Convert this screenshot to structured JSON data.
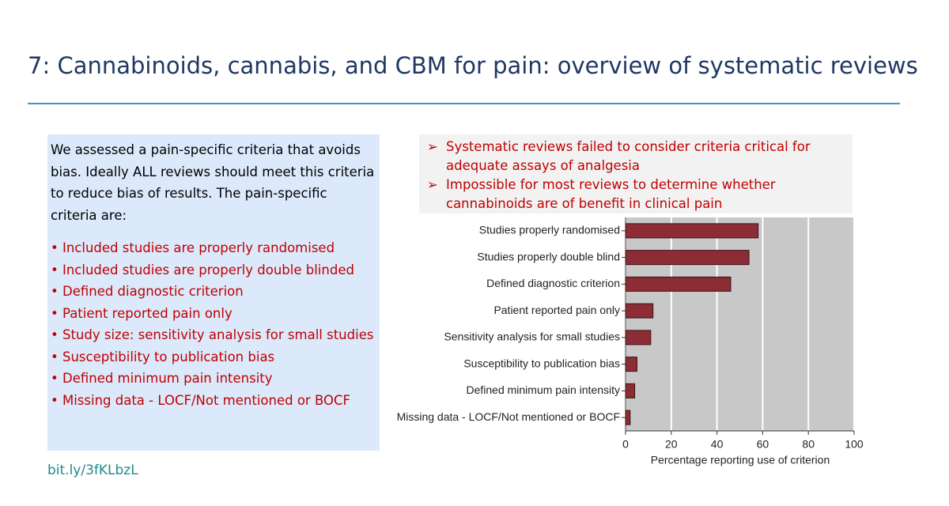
{
  "title": "7: Cannabinoids, cannabis, and CBM for pain: overview of systematic reviews",
  "intro": "We assessed a pain-specific criteria that avoids bias. Ideally ALL reviews should meet this criteria to reduce bias of results. The pain-specific criteria are:",
  "criteria": [
    "Included studies are properly randomised",
    "Included studies are properly double blinded",
    "Defined diagnostic criterion",
    "Patient reported pain only",
    "Study size:  sensitivity analysis for small studies",
    "Susceptibility to publication bias",
    "Defined minimum pain intensity",
    "Missing data - LOCF/Not mentioned or BOCF"
  ],
  "callouts": [
    "Systematic reviews failed to consider criteria critical for adequate assays of analgesia",
    "Impossible for most reviews to determine whether cannabinoids are of benefit in clinical pain"
  ],
  "link": "bit.ly/3fKLbzL",
  "chart_data": {
    "type": "hbar",
    "x_label": "Percentage reporting use of criterion",
    "categories": [
      "Studies properly randomised",
      "Studies properly double blind",
      "Defined diagnostic criterion",
      "Patient reported pain only",
      "Sensitivity analysis for small studies",
      "Susceptibility to publication bias",
      "Defined minimum pain intensity",
      "Missing data - LOCF/Not mentioned or BOCF"
    ],
    "values": [
      58,
      54,
      46,
      12,
      11,
      5,
      4,
      2
    ],
    "color": "#8c2d35",
    "xlim": [
      0,
      100
    ],
    "xticks": [
      0,
      20,
      40,
      60,
      80,
      100
    ],
    "grid": true
  }
}
